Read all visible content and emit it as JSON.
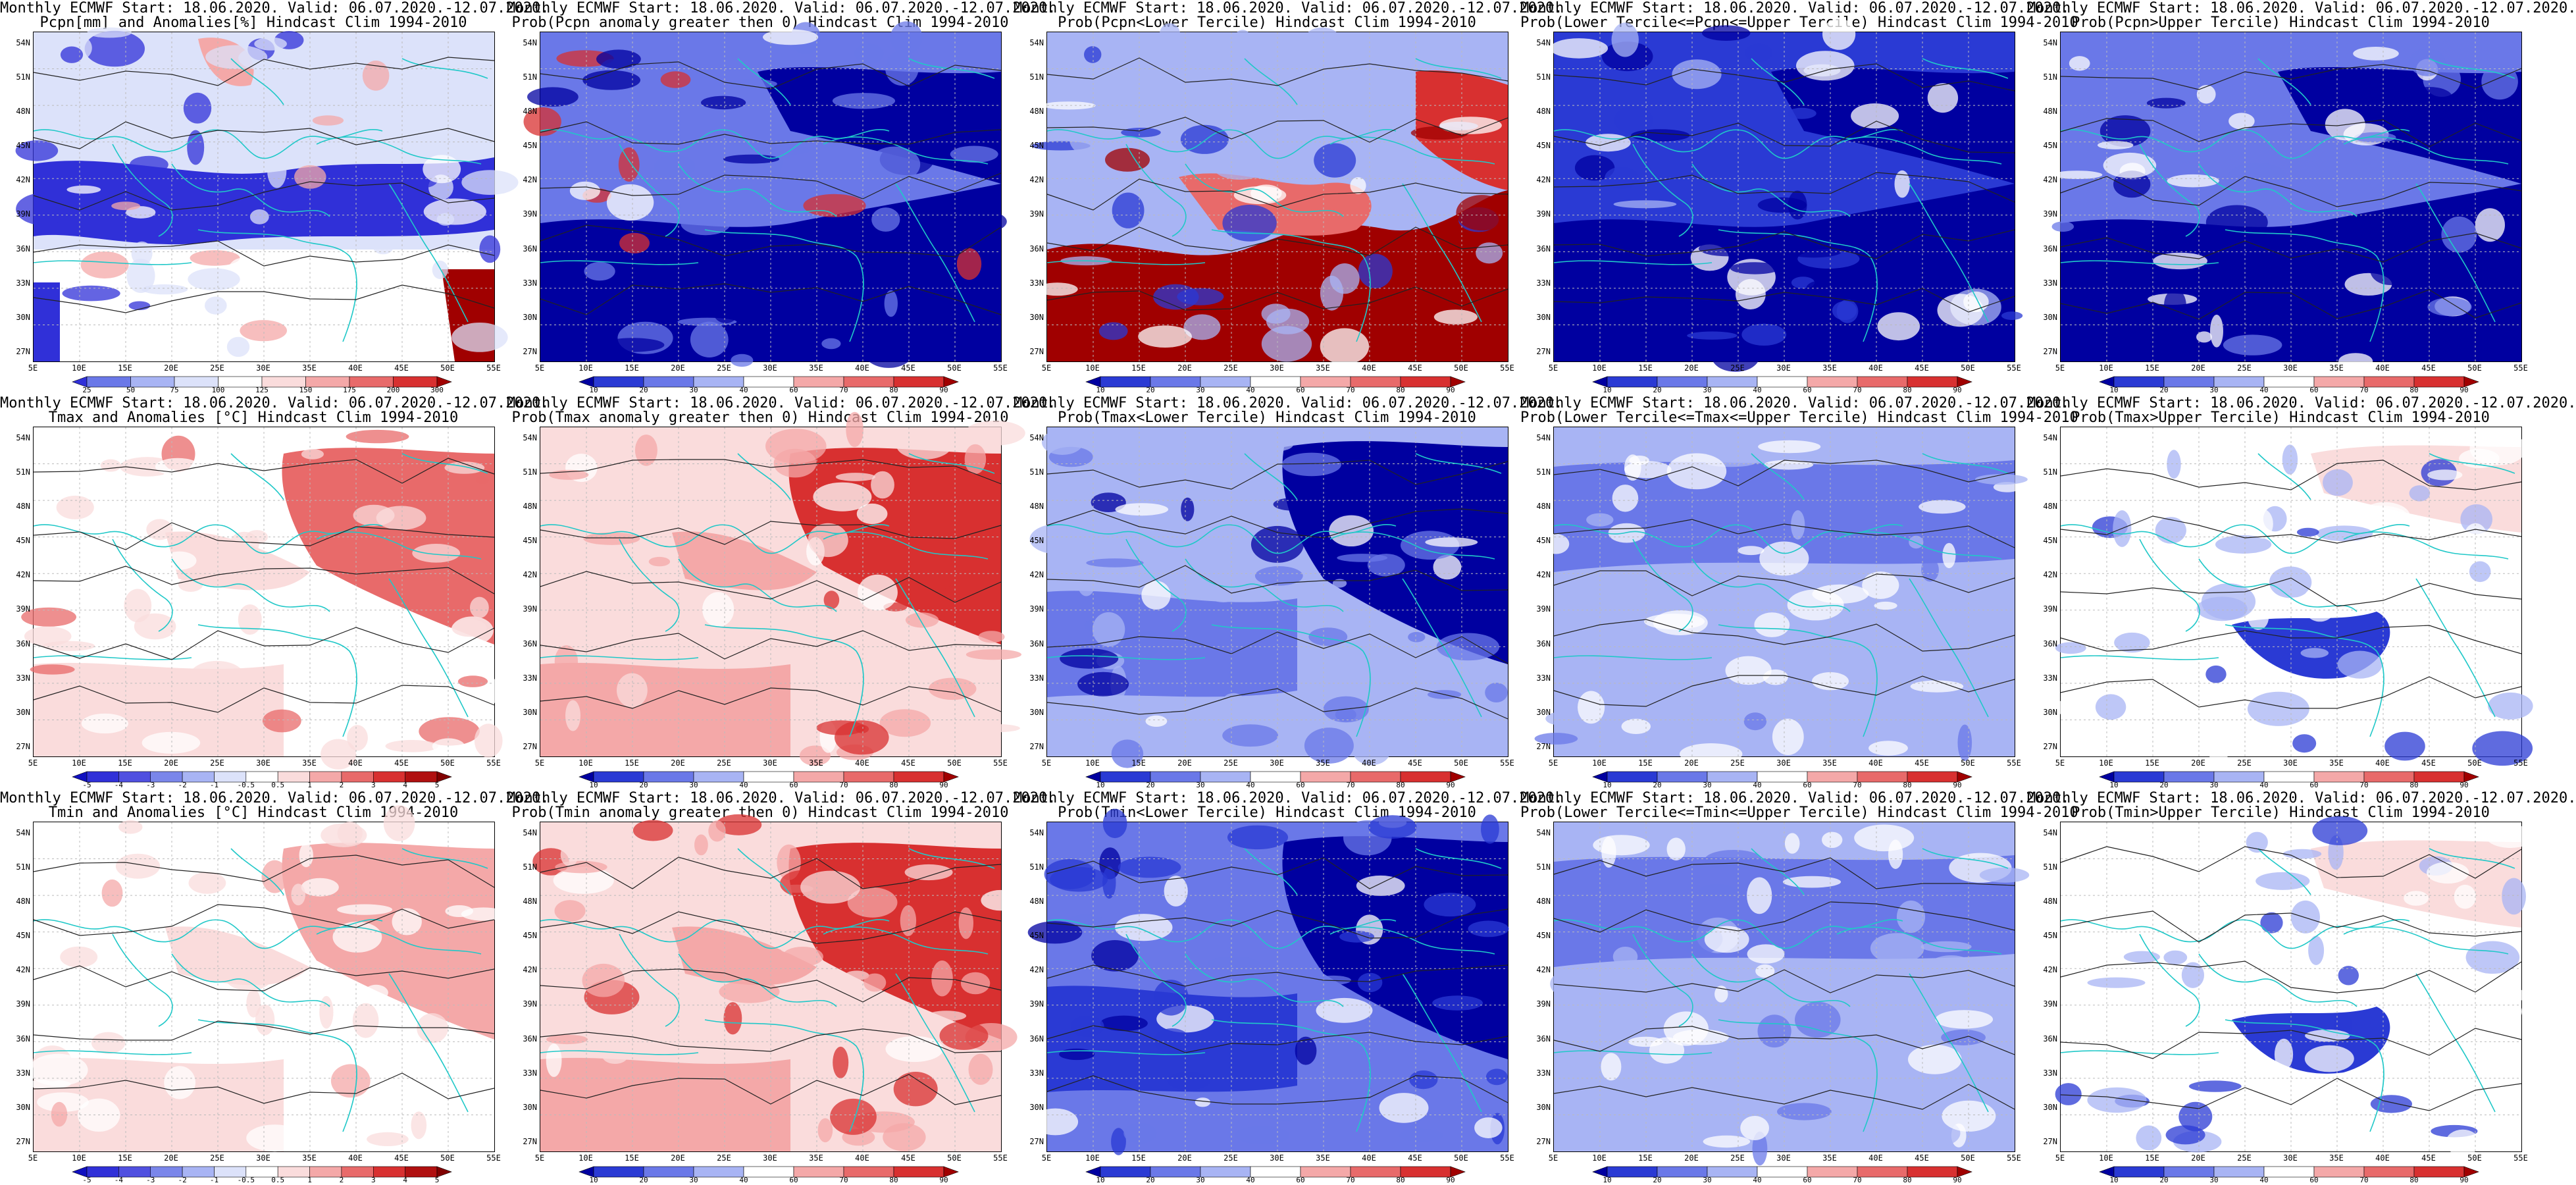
{
  "map_axes": {
    "lat_labels": [
      "54N",
      "51N",
      "48N",
      "45N",
      "42N",
      "39N",
      "36N",
      "33N",
      "30N",
      "27N"
    ],
    "lon_labels": [
      "5E",
      "10E",
      "15E",
      "20E",
      "25E",
      "30E",
      "35E",
      "40E",
      "45E",
      "50E",
      "55E"
    ]
  },
  "colorbars": {
    "anom_pcpn": {
      "labels": [
        "25",
        "50",
        "75",
        "100",
        "125",
        "150",
        "175",
        "200",
        "300"
      ],
      "colors": [
        "#3030d8",
        "#6a78e8",
        "#a8b4f4",
        "#dce2fa",
        "#ffffff",
        "#fadcdc",
        "#f4a8a8",
        "#e86a6a",
        "#d83030",
        "#a00000"
      ]
    },
    "anom_temp": {
      "labels": [
        "-5",
        "-4",
        "-3",
        "-2",
        "-1",
        "-0.5",
        "0.5",
        "1",
        "2",
        "3",
        "4",
        "5"
      ],
      "colors": [
        "#1010c0",
        "#3030d8",
        "#5050e0",
        "#7a86ea",
        "#a8b4f4",
        "#dce2fa",
        "#ffffff",
        "#fadcdc",
        "#f4a8a8",
        "#e86a6a",
        "#d83030",
        "#b01010",
        "#800000"
      ]
    },
    "prob": {
      "labels": [
        "10",
        "20",
        "30",
        "40",
        "60",
        "70",
        "80",
        "90"
      ],
      "colors": [
        "#0000a0",
        "#2a3ad4",
        "#6a78e8",
        "#a8b4f4",
        "#ffffff",
        "#f4a8a8",
        "#e86a6a",
        "#d83030",
        "#a00000"
      ]
    }
  },
  "panels": [
    {
      "id": "r1c1",
      "title1": "Monthly ECMWF Start: 18.06.2020. Valid: 06.07.2020.-12.07.2020.",
      "title2": "Pcpn[mm] and Anomalies[%] Hindcast Clim 1994-2010",
      "scale": "anom_pcpn",
      "fill": "mixed",
      "base": "#dce2fa",
      "accent": "#3030d8",
      "warm": "#f4a8a8"
    },
    {
      "id": "r1c2",
      "title1": "Monthly ECMWF Start: 18.06.2020. Valid: 06.07.2020.-12.07.2020.",
      "title2": "Prob(Pcpn anomaly greater then 0) Hindcast Clim 1994-2010",
      "scale": "prob",
      "fill": "blue-south",
      "base": "#6a78e8",
      "accent": "#0000a0",
      "warm": "#d83030"
    },
    {
      "id": "r1c3",
      "title1": "Monthly ECMWF Start: 18.06.2020. Valid: 06.07.2020.-12.07.2020.",
      "title2": "Prob(Pcpn<Lower Tercile) Hindcast Clim 1994-2010",
      "scale": "prob",
      "fill": "red-south",
      "base": "#a8b4f4",
      "accent": "#2a3ad4",
      "warm": "#a00000"
    },
    {
      "id": "r1c4",
      "title1": "Monthly ECMWF Start: 18.06.2020. Valid: 06.07.2020.-12.07.2020.",
      "title2": "Prob(Lower Tercile<=Pcpn<=Upper Tercile) Hindcast Clim 1994-2010",
      "scale": "prob",
      "fill": "blue-south",
      "base": "#2a3ad4",
      "accent": "#0000a0",
      "warm": "#a8b4f4"
    },
    {
      "id": "r1c5",
      "title1": "Monthly ECMWF Start: 18.06.2020. Valid: 06.07.2020.-12.07.2020.",
      "title2": "Prob(Pcpn>Upper Tercile) Hindcast Clim 1994-2010",
      "scale": "prob",
      "fill": "blue-south",
      "base": "#6a78e8",
      "accent": "#0000a0",
      "warm": "#ffffff"
    },
    {
      "id": "r2c1",
      "title1": "Monthly ECMWF Start: 18.06.2020. Valid: 06.07.2020.-12.07.2020.",
      "title2": "Tmax and Anomalies [°C] Hindcast Clim 1994-2010",
      "scale": "anom_temp",
      "fill": "warm-east",
      "base": "#ffffff",
      "accent": "#fadcdc",
      "warm": "#e86a6a"
    },
    {
      "id": "r2c2",
      "title1": "Monthly ECMWF Start: 18.06.2020. Valid: 06.07.2020.-12.07.2020.",
      "title2": "Prob(Tmax anomaly greater then 0) Hindcast Clim 1994-2010",
      "scale": "prob",
      "fill": "warm-east",
      "base": "#fadcdc",
      "accent": "#f4a8a8",
      "warm": "#d83030"
    },
    {
      "id": "r2c3",
      "title1": "Monthly ECMWF Start: 18.06.2020. Valid: 06.07.2020.-12.07.2020.",
      "title2": "Prob(Tmax<Lower Tercile) Hindcast Clim 1994-2010",
      "scale": "prob",
      "fill": "blue-east",
      "base": "#a8b4f4",
      "accent": "#6a78e8",
      "warm": "#0000a0"
    },
    {
      "id": "r2c4",
      "title1": "Monthly ECMWF Start: 18.06.2020. Valid: 06.07.2020.-12.07.2020.",
      "title2": "Prob(Lower Tercile<=Tmax<=Upper Tercile) Hindcast Clim 1994-2010",
      "scale": "prob",
      "fill": "blue-mixed",
      "base": "#a8b4f4",
      "accent": "#ffffff",
      "warm": "#6a78e8"
    },
    {
      "id": "r2c5",
      "title1": "Monthly ECMWF Start: 18.06.2020. Valid: 06.07.2020.-12.07.2020.",
      "title2": "Prob(Tmax>Upper Tercile) Hindcast Clim 1994-2010",
      "scale": "prob",
      "fill": "cool-south",
      "base": "#ffffff",
      "accent": "#a8b4f4",
      "warm": "#2a3ad4"
    },
    {
      "id": "r3c1",
      "title1": "Monthly ECMWF Start: 18.06.2020. Valid: 06.07.2020.-12.07.2020.",
      "title2": "Tmin and Anomalies [°C] Hindcast Clim 1994-2010",
      "scale": "anom_temp",
      "fill": "warm-east",
      "base": "#ffffff",
      "accent": "#fadcdc",
      "warm": "#f4a8a8"
    },
    {
      "id": "r3c2",
      "title1": "Monthly ECMWF Start: 18.06.2020. Valid: 06.07.2020.-12.07.2020.",
      "title2": "Prob(Tmin anomaly greater then 0) Hindcast Clim 1994-2010",
      "scale": "prob",
      "fill": "warm-east",
      "base": "#fadcdc",
      "accent": "#f4a8a8",
      "warm": "#d83030"
    },
    {
      "id": "r3c3",
      "title1": "Monthly ECMWF Start: 18.06.2020. Valid: 06.07.2020.-12.07.2020.",
      "title2": "Prob(Tmin<Lower Tercile) Hindcast Clim 1994-2010",
      "scale": "prob",
      "fill": "blue-east",
      "base": "#6a78e8",
      "accent": "#2a3ad4",
      "warm": "#0000a0"
    },
    {
      "id": "r3c4",
      "title1": "Monthly ECMWF Start: 18.06.2020. Valid: 06.07.2020.-12.07.2020.",
      "title2": "Prob(Lower Tercile<=Tmin<=Upper Tercile) Hindcast Clim 1994-2010",
      "scale": "prob",
      "fill": "blue-mixed",
      "base": "#a8b4f4",
      "accent": "#ffffff",
      "warm": "#6a78e8"
    },
    {
      "id": "r3c5",
      "title1": "Monthly ECMWF Start: 18.06.2020. Valid: 06.07.2020.-12.07.2020.",
      "title2": "Prob(Tmin>Upper Tercile) Hindcast Clim 1994-2010",
      "scale": "prob",
      "fill": "cool-south",
      "base": "#ffffff",
      "accent": "#a8b4f4",
      "warm": "#2a3ad4"
    }
  ]
}
